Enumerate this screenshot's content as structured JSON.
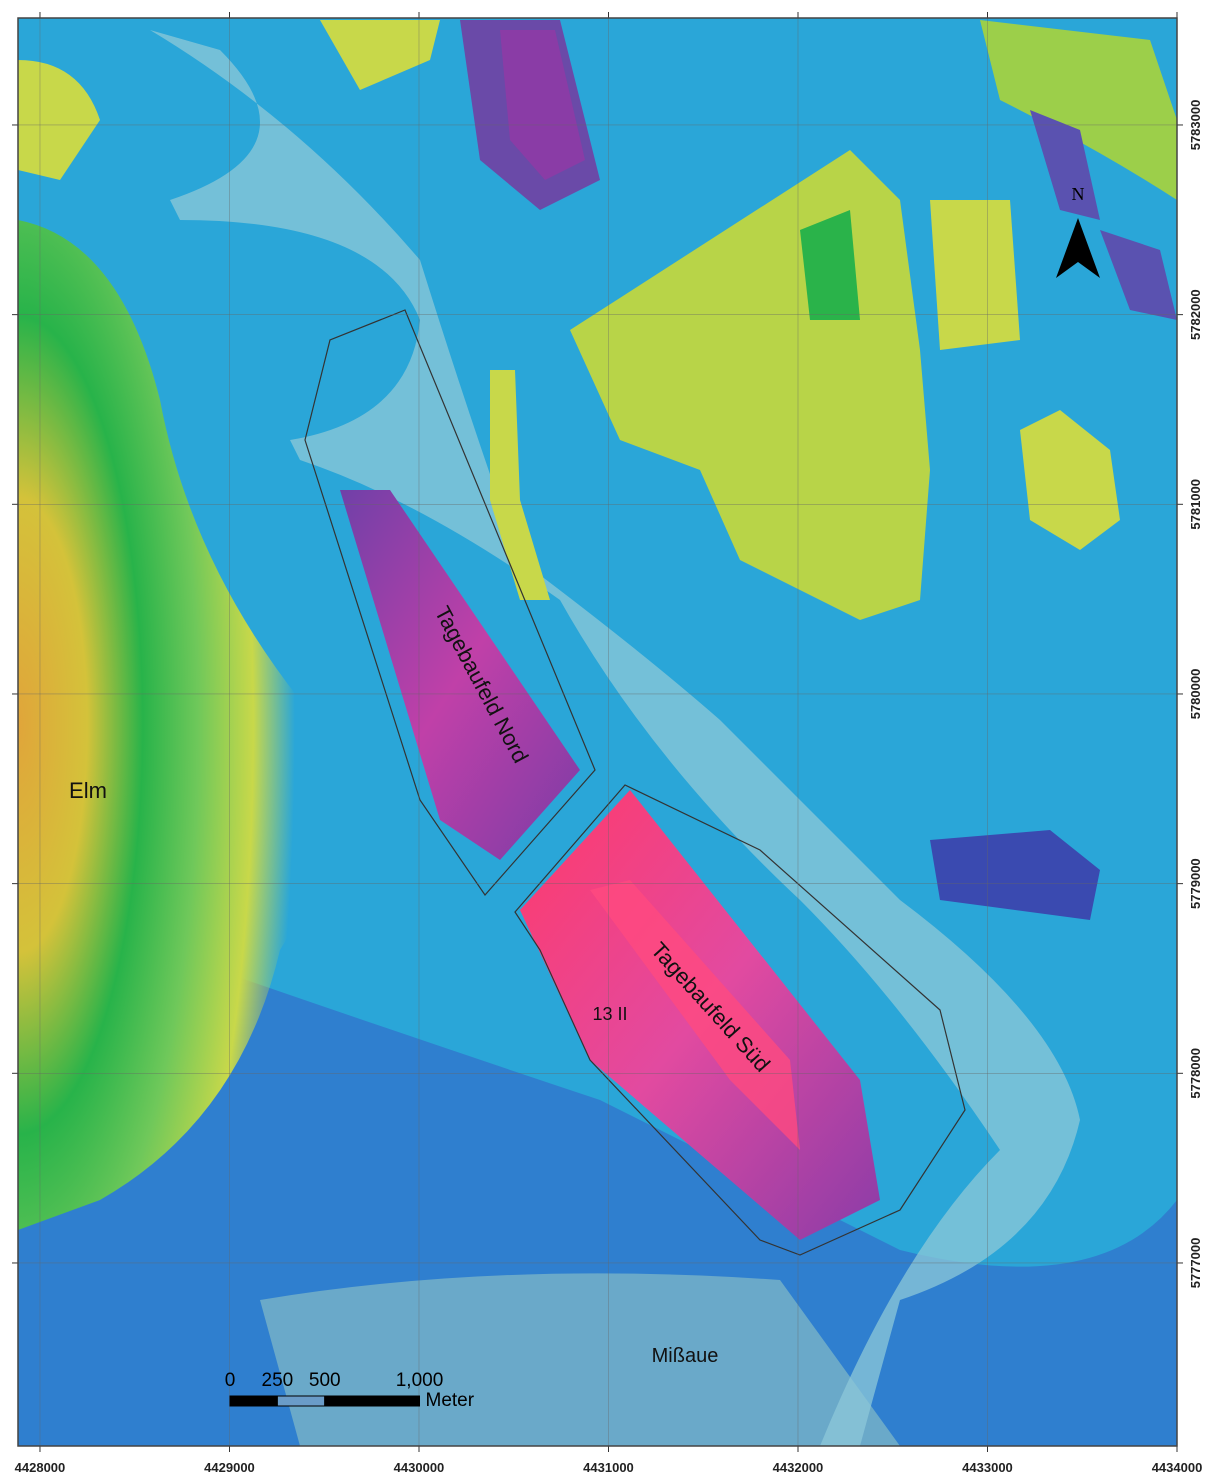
{
  "map": {
    "xlim": [
      4427884,
      4434000
    ],
    "ylim": [
      5776035,
      5783564
    ],
    "xticks": [
      4428000,
      4429000,
      4430000,
      4431000,
      4432000,
      4433000,
      4434000
    ],
    "yticks": [
      5777000,
      5778000,
      5779000,
      5780000,
      5781000,
      5782000,
      5783000
    ],
    "labels": {
      "elm": "Elm",
      "nord": "Tagebaufeld Nord",
      "sued": "Tagebaufeld Süd",
      "site": "13 II",
      "missaue": "Mißaue",
      "north": "N"
    },
    "scale_bar": {
      "ticks": [
        0,
        250,
        500,
        {
          "value": 1000,
          "label": "1,000"
        }
      ],
      "unit": "Meter"
    }
  }
}
